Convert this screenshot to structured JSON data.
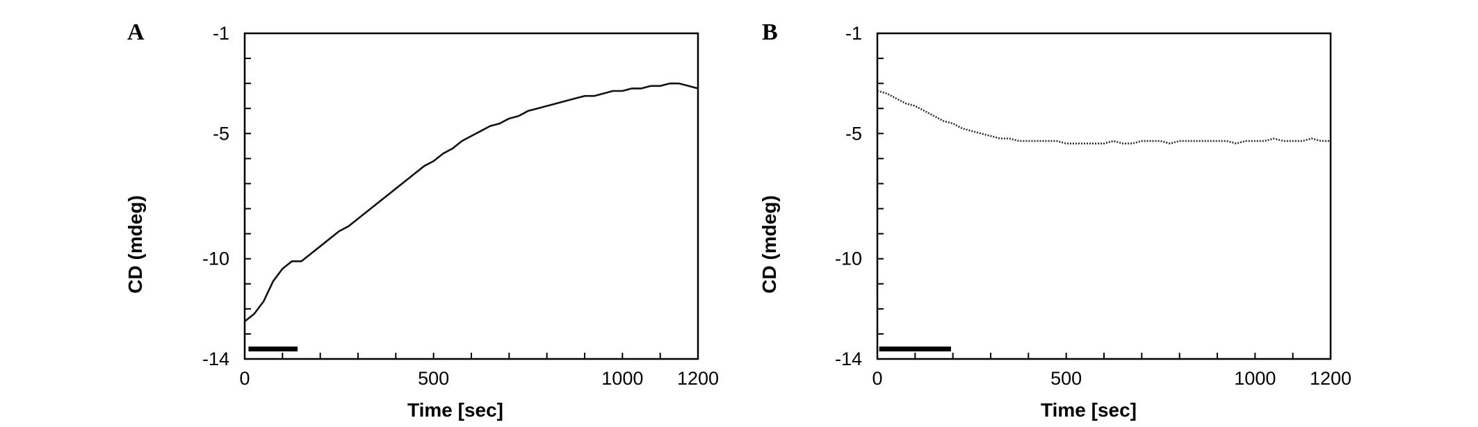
{
  "chart_data": [
    {
      "type": "line",
      "panel_label": "A",
      "title": "",
      "xlabel": "Time [sec]",
      "ylabel": "CD (mdeg)",
      "xlim": [
        0,
        1200
      ],
      "ylim": [
        -14,
        -1
      ],
      "xticks": [
        0,
        500,
        1000,
        1200
      ],
      "xtick_labels": [
        "0",
        "500",
        "1000",
        "1200"
      ],
      "yticks": [
        -1,
        -5,
        -10,
        -14
      ],
      "ytick_labels": [
        "-1",
        "-5",
        "-10",
        "-14"
      ],
      "grid": false,
      "legend": "none",
      "bar": {
        "x": [
          10,
          140
        ],
        "y": -13.6
      },
      "series": [
        {
          "x": [
            0,
            25,
            50,
            75,
            100,
            125,
            150,
            175,
            200,
            225,
            250,
            275,
            300,
            325,
            350,
            375,
            400,
            425,
            450,
            475,
            500,
            525,
            550,
            575,
            600,
            625,
            650,
            675,
            700,
            725,
            750,
            775,
            800,
            825,
            850,
            875,
            900,
            925,
            950,
            975,
            1000,
            1025,
            1050,
            1075,
            1100,
            1125,
            1150,
            1175,
            1200
          ],
          "values": [
            -12.5,
            -12.2,
            -11.7,
            -10.9,
            -10.4,
            -10.1,
            -10.1,
            -9.8,
            -9.5,
            -9.2,
            -8.9,
            -8.7,
            -8.4,
            -8.1,
            -7.8,
            -7.5,
            -7.2,
            -6.9,
            -6.6,
            -6.3,
            -6.1,
            -5.8,
            -5.6,
            -5.3,
            -5.1,
            -4.9,
            -4.7,
            -4.6,
            -4.4,
            -4.3,
            -4.1,
            -4.0,
            -3.9,
            -3.8,
            -3.7,
            -3.6,
            -3.5,
            -3.5,
            -3.4,
            -3.3,
            -3.3,
            -3.2,
            -3.2,
            -3.1,
            -3.1,
            -3.0,
            -3.0,
            -3.1,
            -3.2
          ],
          "color": "#111111"
        }
      ]
    },
    {
      "type": "line",
      "panel_label": "B",
      "title": "",
      "xlabel": "Time [sec]",
      "ylabel": "CD (mdeg)",
      "xlim": [
        0,
        1200
      ],
      "ylim": [
        -14,
        -1
      ],
      "xticks": [
        0,
        500,
        1000,
        1200
      ],
      "xtick_labels": [
        "0",
        "500",
        "1000",
        "1200"
      ],
      "yticks": [
        -1,
        -5,
        -10,
        -14
      ],
      "ytick_labels": [
        "-1",
        "-5",
        "-10",
        "-14"
      ],
      "grid": false,
      "legend": "none",
      "bar": {
        "x": [
          5,
          195
        ],
        "y": -13.6
      },
      "series": [
        {
          "x": [
            0,
            25,
            50,
            75,
            100,
            125,
            150,
            175,
            200,
            225,
            250,
            275,
            300,
            325,
            350,
            375,
            400,
            425,
            450,
            475,
            500,
            525,
            550,
            575,
            600,
            625,
            650,
            675,
            700,
            725,
            750,
            775,
            800,
            825,
            850,
            875,
            900,
            925,
            950,
            975,
            1000,
            1025,
            1050,
            1075,
            1100,
            1125,
            1150,
            1175,
            1200
          ],
          "values": [
            -3.3,
            -3.4,
            -3.6,
            -3.8,
            -3.9,
            -4.1,
            -4.3,
            -4.5,
            -4.6,
            -4.8,
            -4.9,
            -5.0,
            -5.1,
            -5.2,
            -5.2,
            -5.3,
            -5.3,
            -5.3,
            -5.3,
            -5.3,
            -5.4,
            -5.4,
            -5.4,
            -5.4,
            -5.4,
            -5.3,
            -5.4,
            -5.4,
            -5.3,
            -5.3,
            -5.3,
            -5.4,
            -5.3,
            -5.3,
            -5.3,
            -5.3,
            -5.3,
            -5.3,
            -5.4,
            -5.3,
            -5.3,
            -5.3,
            -5.2,
            -5.3,
            -5.3,
            -5.3,
            -5.2,
            -5.3,
            -5.3
          ],
          "color": "#2a2a2a",
          "line_style": "dotted"
        }
      ]
    }
  ]
}
